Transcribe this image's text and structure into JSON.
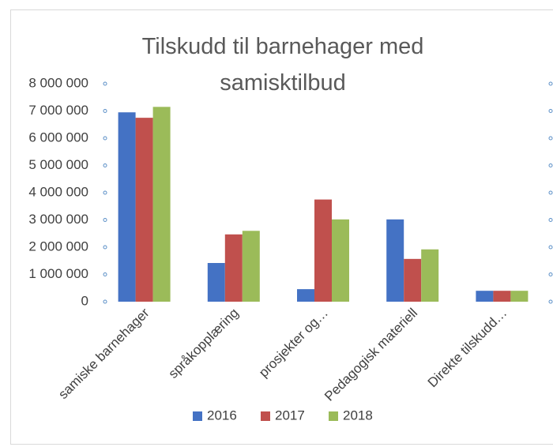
{
  "chart_data": {
    "type": "bar",
    "title": "Tilskudd til barnehager med samisktilbud",
    "categories": [
      "samiske barnehager",
      "språkopplæring",
      "prosjekter og…",
      "Pedagogisk materiell",
      "Direkte tilskudd…"
    ],
    "series": [
      {
        "name": "2016",
        "color": "#4472c4",
        "values": [
          6950000,
          1420000,
          460000,
          3020000,
          400000
        ]
      },
      {
        "name": "2017",
        "color": "#c0504d",
        "values": [
          6750000,
          2470000,
          3750000,
          1570000,
          400000
        ]
      },
      {
        "name": "2018",
        "color": "#9bbb59",
        "values": [
          7150000,
          2600000,
          3020000,
          1920000,
          400000
        ]
      }
    ],
    "ylim": [
      0,
      8000000
    ],
    "yticks": [
      0,
      {
        "value": 1000000,
        "label": "1 000 000"
      },
      {
        "value": 2000000,
        "label": "2 000 000"
      },
      {
        "value": 3000000,
        "label": "3 000 000"
      },
      {
        "value": 4000000,
        "label": "4 000 000"
      },
      {
        "value": 5000000,
        "label": "5 000 000"
      },
      {
        "value": 6000000,
        "label": "6 000 000"
      },
      {
        "value": 7000000,
        "label": "7 000 000"
      },
      {
        "value": 8000000,
        "label": "8 000 000"
      }
    ],
    "legend": "bottom"
  }
}
